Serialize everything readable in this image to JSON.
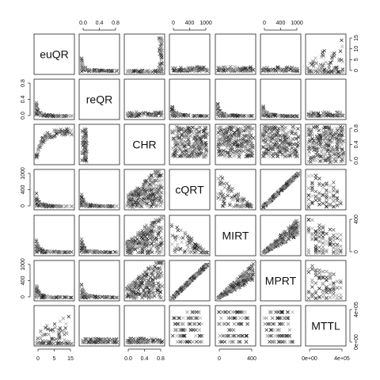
{
  "chart_data": {
    "type": "scatter",
    "variables": [
      "euQR",
      "reQR",
      "CHR",
      "cQRT",
      "MIRT",
      "MPRT",
      "MTTL"
    ],
    "axes": {
      "top": [
        {
          "var": "reQR",
          "ticks": [
            "0.0",
            "0.4",
            "0.8"
          ]
        },
        {
          "var": "cQRT",
          "ticks": [
            "0",
            "400",
            "1000"
          ]
        },
        {
          "var": "MPRT",
          "ticks": [
            "0",
            "400",
            "1000"
          ]
        }
      ],
      "bottom": [
        {
          "var": "euQR",
          "ticks": [
            "0",
            "5",
            "15"
          ]
        },
        {
          "var": "CHR",
          "ticks": [
            "0.0",
            "0.4",
            "0.8"
          ]
        },
        {
          "var": "MIRT",
          "ticks": [
            "0",
            "400"
          ]
        },
        {
          "var": "MTTL",
          "ticks": [
            "0e+00",
            "4e+05"
          ]
        }
      ],
      "left": [
        {
          "var": "reQR",
          "ticks": [
            "0.0",
            "0.4",
            "0.8"
          ]
        },
        {
          "var": "cQRT",
          "ticks": [
            "0",
            "400",
            "1000"
          ]
        },
        {
          "var": "MPRT",
          "ticks": [
            "0",
            "400",
            "1000"
          ]
        }
      ],
      "right": [
        {
          "var": "euQR",
          "ticks": [
            "0",
            "5",
            "10",
            "15"
          ]
        },
        {
          "var": "CHR",
          "ticks": [
            "0.0",
            "0.4",
            "0.8"
          ]
        },
        {
          "var": "MIRT",
          "ticks": [
            "0",
            "400"
          ]
        },
        {
          "var": "MTTL",
          "ticks": [
            "0e+00",
            "4e+05"
          ]
        }
      ]
    },
    "marker": "x",
    "point_colors": [
      "#222222",
      "#555555",
      "#888888",
      "#aaaaaa"
    ],
    "panel_patterns": {
      "0-1": "decay-tail",
      "0-2": "l-shape",
      "0-3": "bottom-band",
      "0-4": "bottom-band",
      "0-5": "bottom-band",
      "0-6": "sparse-rise",
      "1-0": "decay-tail",
      "1-2": "bottom-band",
      "1-3": "decay-tail",
      "1-4": "decay-tail",
      "1-5": "decay-tail",
      "1-6": "bottom-band",
      "2-0": "saturating",
      "2-1": "left-block",
      "2-3": "dense-dark",
      "2-4": "dense-dark",
      "2-5": "dense-dark",
      "2-6": "full-block",
      "3-0": "decay-tail",
      "3-1": "decay-tail",
      "3-2": "staircase",
      "3-4": "anti-diagonal",
      "3-5": "diagonal",
      "3-6": "vertical-bars",
      "4-0": "decay-tail",
      "4-1": "decay-tail",
      "4-2": "staircase",
      "4-3": "anti-diagonal",
      "4-5": "wedge",
      "4-6": "vertical-bars",
      "5-0": "decay-tail",
      "5-1": "decay-tail",
      "5-2": "staircase",
      "5-3": "diagonal",
      "5-4": "wedge",
      "5-6": "vertical-bars",
      "6-0": "sparse-rise",
      "6-1": "bottom-band",
      "6-2": "bottom-band",
      "6-3": "horizontal-bars",
      "6-4": "horizontal-bars",
      "6-5": "horizontal-bars"
    }
  }
}
